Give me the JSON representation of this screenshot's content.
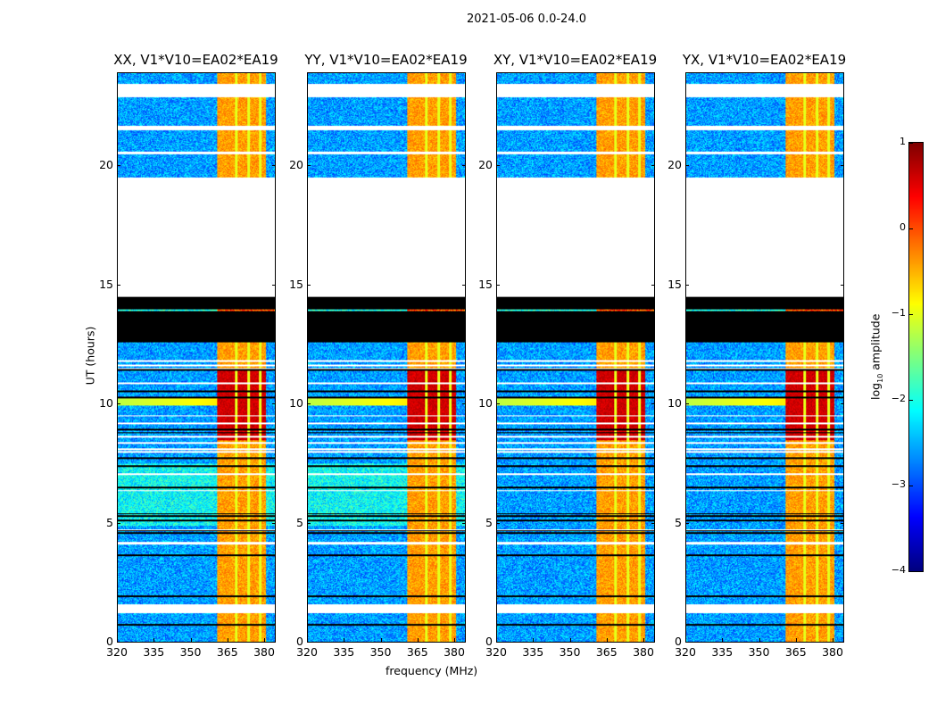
{
  "suptitle": "2021-05-06 0.0-24.0",
  "chart_data": {
    "type": "heatmap",
    "title": "2021-05-06 0.0-24.0",
    "xlabel": "frequency (MHz)",
    "ylabel": "UT (hours)",
    "xlim": [
      320,
      384.5
    ],
    "ylim": [
      0,
      24
    ],
    "xticks": [
      "320",
      "335",
      "350",
      "365",
      "380"
    ],
    "xtick_values": [
      320,
      335,
      350,
      365,
      380
    ],
    "yticks": [
      "0",
      "5",
      "10",
      "15",
      "20"
    ],
    "ytick_values": [
      0,
      5,
      10,
      15,
      20
    ],
    "panels": [
      {
        "title": "XX, V1*V10=EA02*EA19",
        "rfi_start": 360.7
      },
      {
        "title": "YY, V1*V10=EA02*EA19",
        "rfi_start": 360.7
      },
      {
        "title": "XY, V1*V10=EA02*EA19",
        "rfi_start": 360.7
      },
      {
        "title": "YX, V1*V10=EA02*EA19",
        "rfi_start": 360.7
      }
    ],
    "time_segments": [
      {
        "from": 0.0,
        "to": 1.2,
        "state": "data"
      },
      {
        "from": 1.2,
        "to": 1.5,
        "state": "flagged-white"
      },
      {
        "from": 1.5,
        "to": 12.6,
        "state": "data"
      },
      {
        "from": 12.6,
        "to": 14.5,
        "state": "zero-black"
      },
      {
        "from": 14.5,
        "to": 19.55,
        "state": "no-data"
      },
      {
        "from": 19.55,
        "to": 20.5,
        "state": "data"
      },
      {
        "from": 20.5,
        "to": 20.6,
        "state": "flagged-white"
      },
      {
        "from": 20.6,
        "to": 21.5,
        "state": "data"
      },
      {
        "from": 21.5,
        "to": 21.7,
        "state": "flagged-white"
      },
      {
        "from": 21.7,
        "to": 22.9,
        "state": "data"
      },
      {
        "from": 22.9,
        "to": 23.45,
        "state": "flagged-white"
      },
      {
        "from": 23.45,
        "to": 24.0,
        "state": "data"
      }
    ],
    "rfi_band_mhz": [
      360.7,
      380.4
    ],
    "rfi_peak_hours": [
      8.5,
      11.5
    ],
    "background_level": -2.6,
    "rfi_level": -0.4,
    "rfi_peak_level": 0.6,
    "colorbar": {
      "label": "log10 amplitude",
      "label_main": "log",
      "label_sub": "10",
      "label_rest": " amplitude",
      "range": [
        -4,
        1
      ],
      "ticks": [
        "1",
        "0",
        "−1",
        "−2",
        "−3",
        "−4"
      ],
      "tick_values": [
        1,
        0,
        -1,
        -2,
        -3,
        -4
      ],
      "colormap": "jet"
    }
  }
}
